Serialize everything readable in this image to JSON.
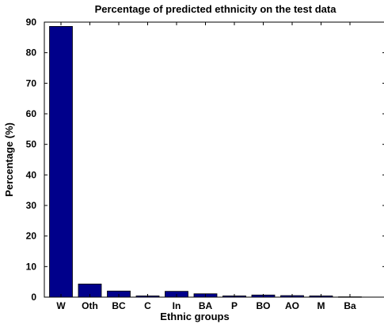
{
  "chart_data": {
    "type": "bar",
    "title": "Percentage of predicted ethnicity on the test data",
    "xlabel": "Ethnic groups",
    "ylabel": "Percentage (%)",
    "categories": [
      "W",
      "Oth",
      "BC",
      "C",
      "In",
      "BA",
      "P",
      "BO",
      "AO",
      "M",
      "Ba"
    ],
    "values": [
      88.6,
      4.3,
      2.0,
      0.4,
      1.9,
      1.1,
      0.4,
      0.7,
      0.5,
      0.4,
      0.1
    ],
    "ylim": [
      0,
      90
    ],
    "yticks": [
      0,
      10,
      20,
      30,
      40,
      50,
      60,
      70,
      80,
      90
    ],
    "grid": false,
    "bar_color": "#00008b"
  }
}
